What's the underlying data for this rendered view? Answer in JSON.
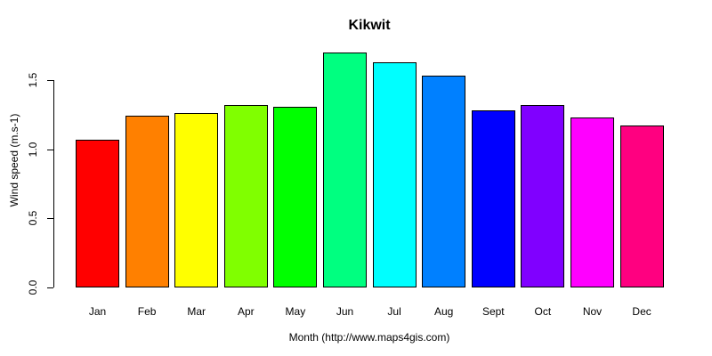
{
  "chart_data": {
    "type": "bar",
    "title": "Kikwit",
    "xlabel": "Month (http://www.maps4gis.com)",
    "ylabel": "Wind speed (m.s-1)",
    "categories": [
      "Jan",
      "Feb",
      "Mar",
      "Apr",
      "May",
      "Jun",
      "Jul",
      "Aug",
      "Sept",
      "Oct",
      "Nov",
      "Dec"
    ],
    "values": [
      1.07,
      1.24,
      1.26,
      1.32,
      1.31,
      1.7,
      1.63,
      1.53,
      1.28,
      1.32,
      1.23,
      1.17
    ],
    "bar_colors": [
      "#FF0000",
      "#FF8000",
      "#FFFF00",
      "#80FF00",
      "#00FF00",
      "#00FF80",
      "#00FFFF",
      "#0080FF",
      "#0000FF",
      "#8000FF",
      "#FF00FF",
      "#FF0080"
    ],
    "bar_border_color": "#000000",
    "yticks": [
      "0.0",
      "0.5",
      "1.0",
      "1.5"
    ],
    "ylim": [
      0,
      1.75
    ],
    "grid": false,
    "legend": "none",
    "title_color": "#000000",
    "axis_color": "#000000"
  }
}
